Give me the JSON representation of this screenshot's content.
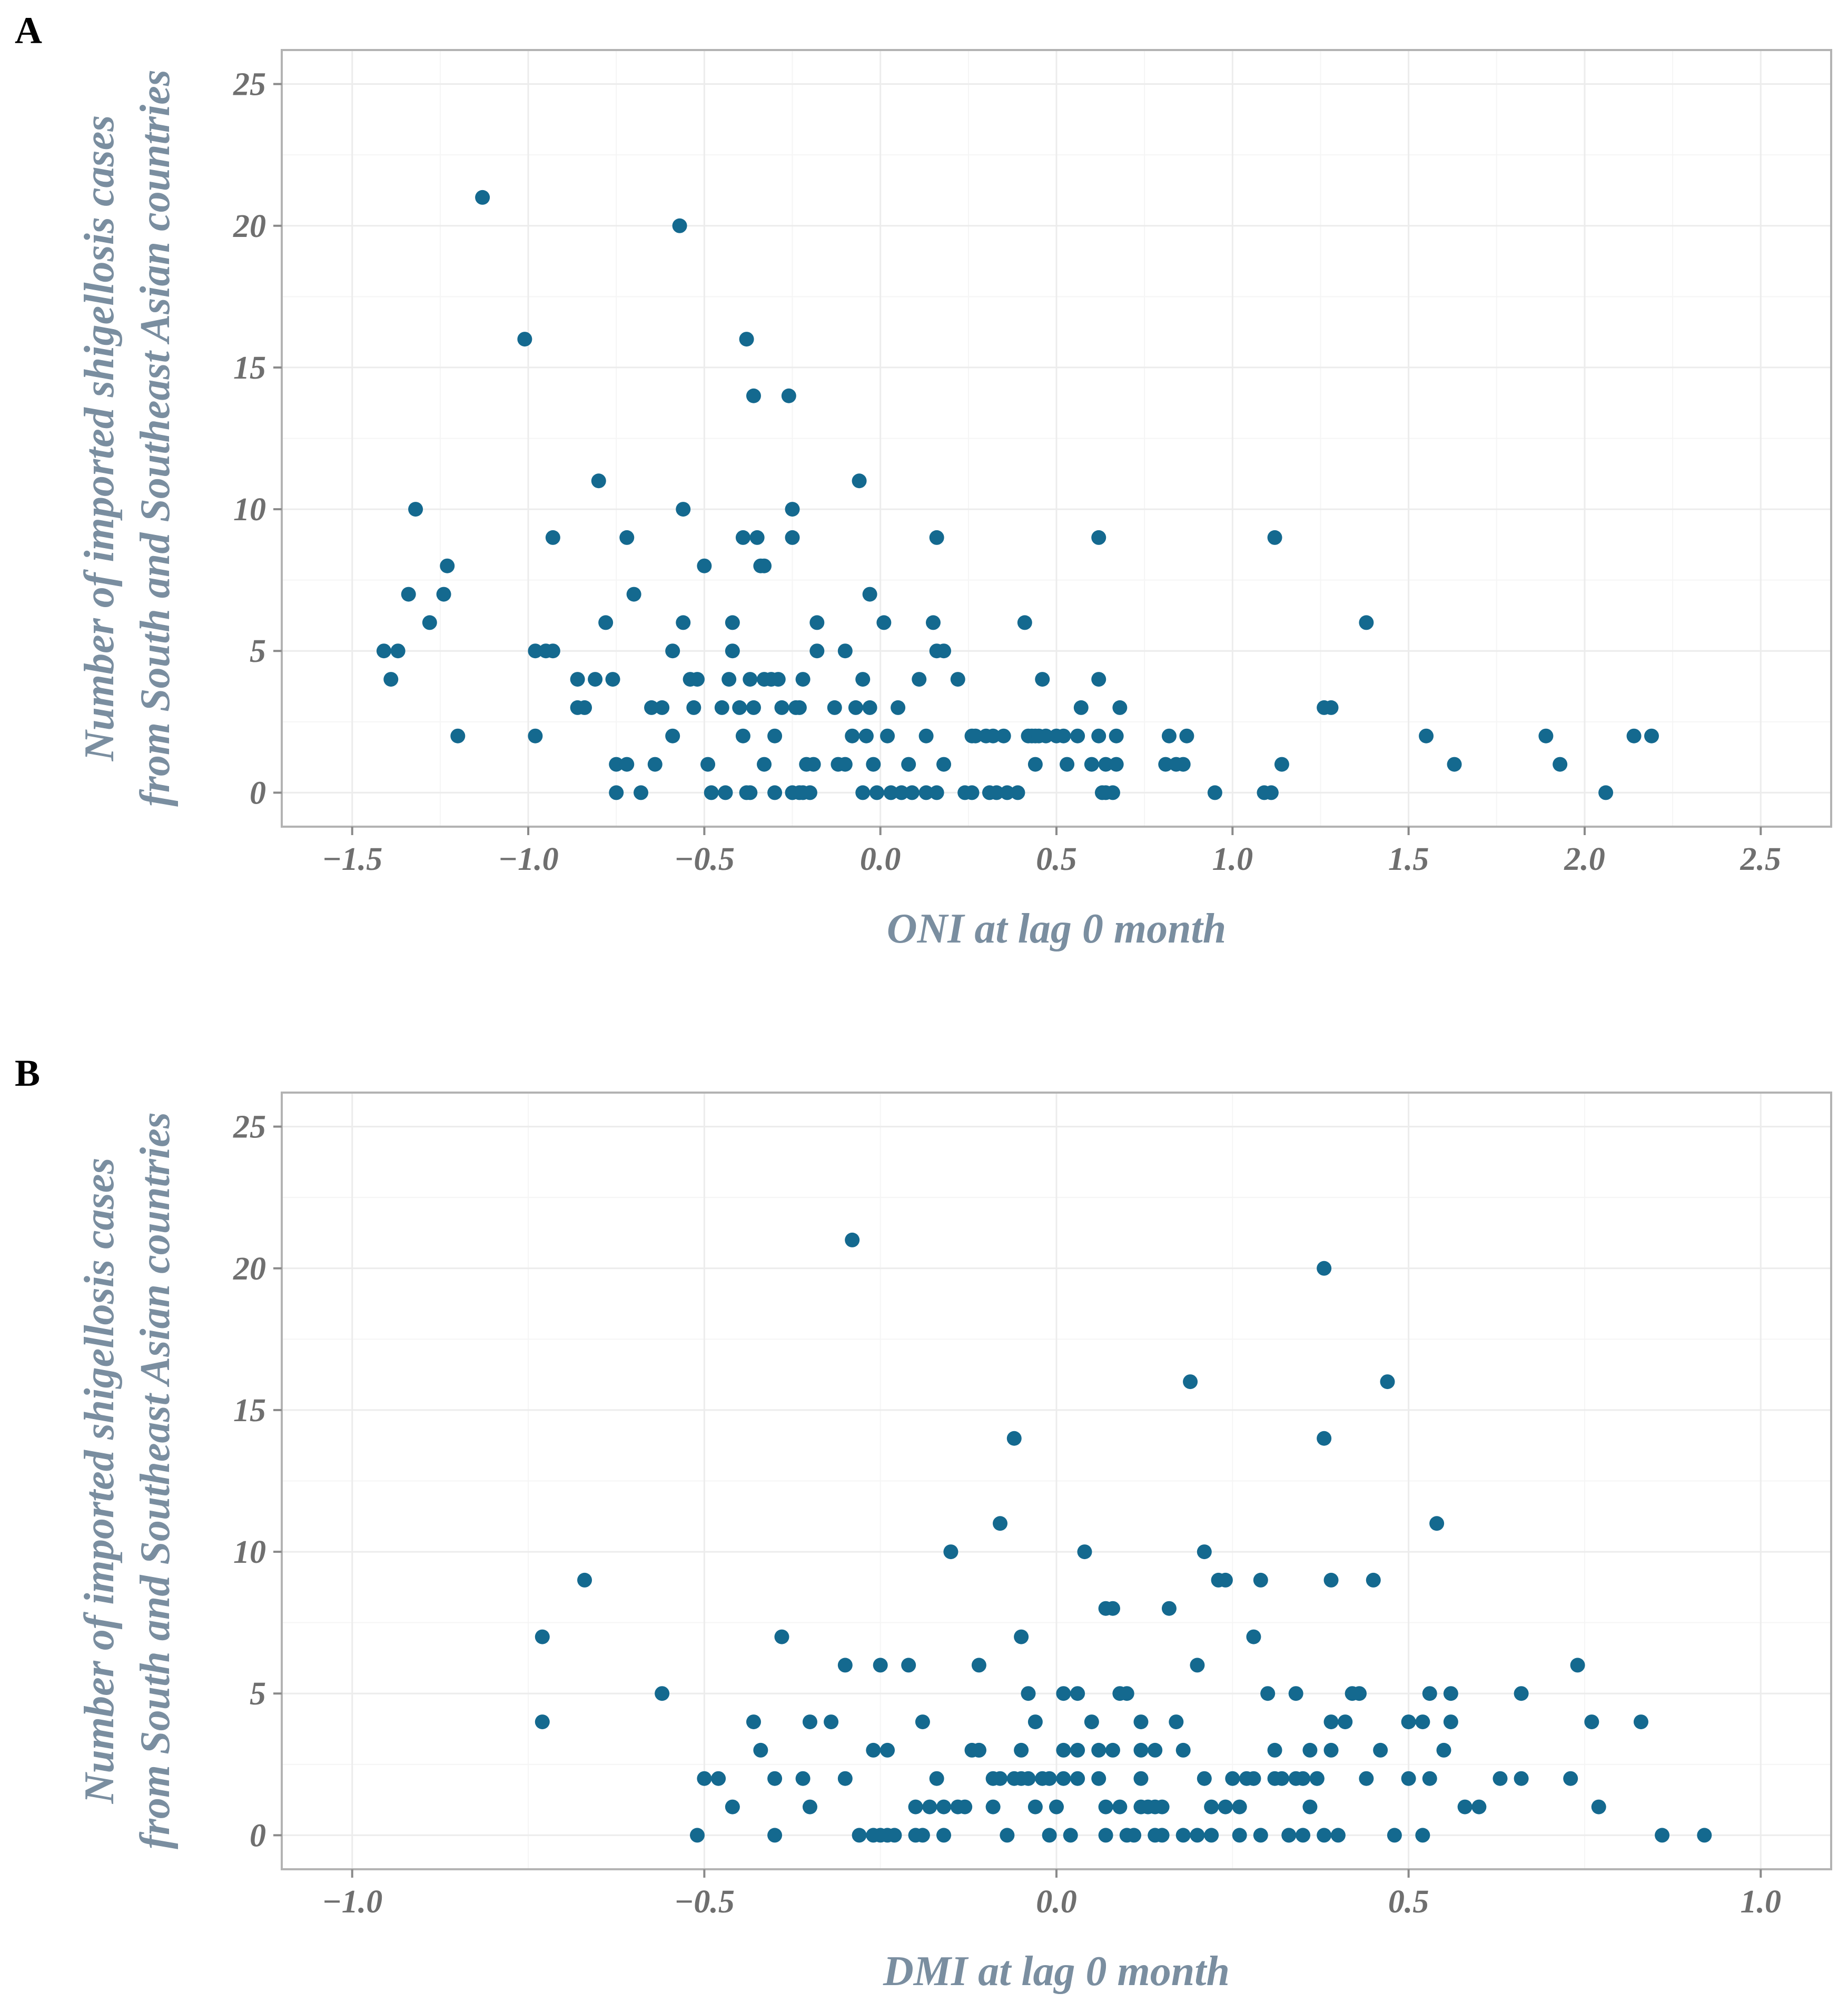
{
  "chart_data": [
    {
      "panel": "A",
      "type": "scatter",
      "title": "",
      "xlabel": "ONI at lag 0 month",
      "ylabel_lines": [
        "Number of imported shigellosis cases",
        "from South and Southeast Asian countries"
      ],
      "xlim": [
        -1.7,
        2.7
      ],
      "ylim": [
        -1.2,
        26.2
      ],
      "xticks": [
        -1.5,
        -1.0,
        -0.5,
        0.0,
        0.5,
        1.0,
        1.5,
        2.0,
        2.5
      ],
      "xtick_labels": [
        "−1.5",
        "−1.0",
        "−0.5",
        "0.0",
        "0.5",
        "1.0",
        "1.5",
        "2.0",
        "2.5"
      ],
      "yticks": [
        0,
        5,
        10,
        15,
        20,
        25
      ],
      "ytick_labels": [
        "0",
        "5",
        "10",
        "15",
        "20",
        "25"
      ],
      "grid": true,
      "color": "#14698f",
      "points": [
        [
          -1.41,
          5
        ],
        [
          -1.39,
          4
        ],
        [
          -1.37,
          5
        ],
        [
          -1.34,
          7
        ],
        [
          -1.32,
          10
        ],
        [
          -1.28,
          6
        ],
        [
          -1.24,
          7
        ],
        [
          -1.23,
          8
        ],
        [
          -1.2,
          2
        ],
        [
          -1.13,
          21
        ],
        [
          -1.01,
          16
        ],
        [
          -0.98,
          5
        ],
        [
          -0.98,
          2
        ],
        [
          -0.95,
          5
        ],
        [
          -0.93,
          5
        ],
        [
          -0.93,
          9
        ],
        [
          -0.86,
          4
        ],
        [
          -0.86,
          3
        ],
        [
          -0.84,
          3
        ],
        [
          -0.81,
          4
        ],
        [
          -0.8,
          11
        ],
        [
          -0.78,
          6
        ],
        [
          -0.76,
          4
        ],
        [
          -0.75,
          1
        ],
        [
          -0.75,
          0
        ],
        [
          -0.72,
          1
        ],
        [
          -0.72,
          9
        ],
        [
          -0.7,
          7
        ],
        [
          -0.68,
          0
        ],
        [
          -0.65,
          3
        ],
        [
          -0.64,
          1
        ],
        [
          -0.62,
          3
        ],
        [
          -0.59,
          5
        ],
        [
          -0.59,
          2
        ],
        [
          -0.57,
          20
        ],
        [
          -0.56,
          10
        ],
        [
          -0.56,
          6
        ],
        [
          -0.54,
          4
        ],
        [
          -0.53,
          3
        ],
        [
          -0.52,
          4
        ],
        [
          -0.5,
          8
        ],
        [
          -0.49,
          1
        ],
        [
          -0.48,
          0
        ],
        [
          -0.45,
          3
        ],
        [
          -0.44,
          0
        ],
        [
          -0.43,
          4
        ],
        [
          -0.42,
          6
        ],
        [
          -0.42,
          5
        ],
        [
          -0.4,
          3
        ],
        [
          -0.39,
          2
        ],
        [
          -0.39,
          9
        ],
        [
          -0.38,
          16
        ],
        [
          -0.38,
          0
        ],
        [
          -0.37,
          0
        ],
        [
          -0.37,
          4
        ],
        [
          -0.36,
          3
        ],
        [
          -0.36,
          14
        ],
        [
          -0.35,
          9
        ],
        [
          -0.34,
          8
        ],
        [
          -0.33,
          1
        ],
        [
          -0.33,
          8
        ],
        [
          -0.33,
          4
        ],
        [
          -0.31,
          4
        ],
        [
          -0.3,
          0
        ],
        [
          -0.3,
          2
        ],
        [
          -0.29,
          4
        ],
        [
          -0.28,
          3
        ],
        [
          -0.26,
          14
        ],
        [
          -0.25,
          9
        ],
        [
          -0.25,
          10
        ],
        [
          -0.25,
          0
        ],
        [
          -0.24,
          3
        ],
        [
          -0.23,
          3
        ],
        [
          -0.23,
          0
        ],
        [
          -0.22,
          4
        ],
        [
          -0.22,
          0
        ],
        [
          -0.21,
          1
        ],
        [
          -0.2,
          0
        ],
        [
          -0.19,
          1
        ],
        [
          -0.18,
          6
        ],
        [
          -0.18,
          5
        ],
        [
          -0.13,
          3
        ],
        [
          -0.12,
          1
        ],
        [
          -0.1,
          5
        ],
        [
          -0.1,
          1
        ],
        [
          -0.08,
          2
        ],
        [
          -0.07,
          3
        ],
        [
          -0.06,
          11
        ],
        [
          -0.05,
          0
        ],
        [
          -0.05,
          4
        ],
        [
          -0.04,
          2
        ],
        [
          -0.03,
          3
        ],
        [
          -0.03,
          7
        ],
        [
          -0.02,
          1
        ],
        [
          -0.01,
          0
        ],
        [
          0.01,
          6
        ],
        [
          0.02,
          2
        ],
        [
          0.03,
          0
        ],
        [
          0.05,
          3
        ],
        [
          0.06,
          0
        ],
        [
          0.08,
          1
        ],
        [
          0.09,
          0
        ],
        [
          0.11,
          4
        ],
        [
          0.13,
          2
        ],
        [
          0.13,
          0
        ],
        [
          0.15,
          6
        ],
        [
          0.16,
          5
        ],
        [
          0.16,
          0
        ],
        [
          0.16,
          9
        ],
        [
          0.18,
          5
        ],
        [
          0.18,
          1
        ],
        [
          0.22,
          4
        ],
        [
          0.24,
          0
        ],
        [
          0.26,
          2
        ],
        [
          0.26,
          0
        ],
        [
          0.27,
          2
        ],
        [
          0.3,
          2
        ],
        [
          0.31,
          0
        ],
        [
          0.32,
          2
        ],
        [
          0.33,
          0
        ],
        [
          0.35,
          2
        ],
        [
          0.36,
          0
        ],
        [
          0.39,
          0
        ],
        [
          0.41,
          6
        ],
        [
          0.42,
          2
        ],
        [
          0.43,
          2
        ],
        [
          0.44,
          1
        ],
        [
          0.44,
          2
        ],
        [
          0.45,
          2
        ],
        [
          0.46,
          4
        ],
        [
          0.47,
          2
        ],
        [
          0.5,
          2
        ],
        [
          0.52,
          2
        ],
        [
          0.53,
          1
        ],
        [
          0.56,
          2
        ],
        [
          0.57,
          3
        ],
        [
          0.6,
          1
        ],
        [
          0.62,
          9
        ],
        [
          0.62,
          4
        ],
        [
          0.62,
          2
        ],
        [
          0.63,
          0
        ],
        [
          0.64,
          1
        ],
        [
          0.64,
          0
        ],
        [
          0.66,
          0
        ],
        [
          0.67,
          1
        ],
        [
          0.67,
          2
        ],
        [
          0.68,
          3
        ],
        [
          0.81,
          1
        ],
        [
          0.82,
          2
        ],
        [
          0.84,
          1
        ],
        [
          0.86,
          1
        ],
        [
          0.87,
          2
        ],
        [
          0.95,
          0
        ],
        [
          1.09,
          0
        ],
        [
          1.11,
          0
        ],
        [
          1.12,
          9
        ],
        [
          1.14,
          1
        ],
        [
          1.26,
          3
        ],
        [
          1.28,
          3
        ],
        [
          1.38,
          6
        ],
        [
          1.55,
          2
        ],
        [
          1.63,
          1
        ],
        [
          1.89,
          2
        ],
        [
          1.93,
          1
        ],
        [
          2.06,
          0
        ],
        [
          2.14,
          2
        ],
        [
          2.19,
          2
        ]
      ]
    },
    {
      "panel": "B",
      "type": "scatter",
      "title": "",
      "xlabel": "DMI at lag 0 month",
      "ylabel_lines": [
        "Number of imported shigellosis cases",
        "from South and Southeast Asian countries"
      ],
      "xlim": [
        -1.1,
        1.1
      ],
      "ylim": [
        -1.2,
        26.2
      ],
      "xticks": [
        -1.0,
        -0.5,
        0.0,
        0.5,
        1.0
      ],
      "xtick_labels": [
        "−1.0",
        "−0.5",
        "0.0",
        "0.5",
        "1.0"
      ],
      "yticks": [
        0,
        5,
        10,
        15,
        20,
        25
      ],
      "ytick_labels": [
        "0",
        "5",
        "10",
        "15",
        "20",
        "25"
      ],
      "grid": true,
      "color": "#14698f",
      "points": [
        [
          -0.73,
          7
        ],
        [
          -0.73,
          4
        ],
        [
          -0.67,
          9
        ],
        [
          -0.56,
          5
        ],
        [
          -0.51,
          0
        ],
        [
          -0.5,
          2
        ],
        [
          -0.48,
          2
        ],
        [
          -0.46,
          1
        ],
        [
          -0.43,
          4
        ],
        [
          -0.42,
          3
        ],
        [
          -0.4,
          2
        ],
        [
          -0.4,
          0
        ],
        [
          -0.39,
          7
        ],
        [
          -0.36,
          2
        ],
        [
          -0.35,
          4
        ],
        [
          -0.35,
          1
        ],
        [
          -0.32,
          4
        ],
        [
          -0.3,
          6
        ],
        [
          -0.3,
          2
        ],
        [
          -0.29,
          21
        ],
        [
          -0.28,
          0
        ],
        [
          -0.26,
          3
        ],
        [
          -0.26,
          0
        ],
        [
          -0.25,
          6
        ],
        [
          -0.25,
          0
        ],
        [
          -0.24,
          3
        ],
        [
          -0.24,
          0
        ],
        [
          -0.23,
          0
        ],
        [
          -0.21,
          6
        ],
        [
          -0.2,
          1
        ],
        [
          -0.2,
          0
        ],
        [
          -0.19,
          4
        ],
        [
          -0.19,
          0
        ],
        [
          -0.18,
          1
        ],
        [
          -0.17,
          2
        ],
        [
          -0.16,
          0
        ],
        [
          -0.16,
          1
        ],
        [
          -0.15,
          10
        ],
        [
          -0.14,
          1
        ],
        [
          -0.13,
          1
        ],
        [
          -0.12,
          3
        ],
        [
          -0.11,
          3
        ],
        [
          -0.11,
          6
        ],
        [
          -0.11,
          3
        ],
        [
          -0.09,
          1
        ],
        [
          -0.09,
          2
        ],
        [
          -0.08,
          11
        ],
        [
          -0.08,
          2
        ],
        [
          -0.07,
          0
        ],
        [
          -0.06,
          14
        ],
        [
          -0.06,
          2
        ],
        [
          -0.05,
          2
        ],
        [
          -0.05,
          7
        ],
        [
          -0.05,
          3
        ],
        [
          -0.04,
          5
        ],
        [
          -0.04,
          2
        ],
        [
          -0.03,
          4
        ],
        [
          -0.03,
          1
        ],
        [
          -0.02,
          2
        ],
        [
          -0.01,
          2
        ],
        [
          -0.01,
          0
        ],
        [
          0.0,
          1
        ],
        [
          0.01,
          2
        ],
        [
          0.01,
          5
        ],
        [
          0.01,
          3
        ],
        [
          0.02,
          0
        ],
        [
          0.03,
          3
        ],
        [
          0.03,
          5
        ],
        [
          0.03,
          2
        ],
        [
          0.04,
          10
        ],
        [
          0.05,
          4
        ],
        [
          0.06,
          2
        ],
        [
          0.06,
          3
        ],
        [
          0.07,
          1
        ],
        [
          0.07,
          8
        ],
        [
          0.07,
          0
        ],
        [
          0.08,
          8
        ],
        [
          0.08,
          3
        ],
        [
          0.09,
          1
        ],
        [
          0.09,
          5
        ],
        [
          0.1,
          0
        ],
        [
          0.1,
          5
        ],
        [
          0.11,
          0
        ],
        [
          0.12,
          4
        ],
        [
          0.12,
          2
        ],
        [
          0.12,
          3
        ],
        [
          0.12,
          1
        ],
        [
          0.13,
          1
        ],
        [
          0.14,
          0
        ],
        [
          0.14,
          1
        ],
        [
          0.14,
          3
        ],
        [
          0.15,
          1
        ],
        [
          0.15,
          0
        ],
        [
          0.16,
          8
        ],
        [
          0.17,
          4
        ],
        [
          0.18,
          0
        ],
        [
          0.18,
          3
        ],
        [
          0.19,
          16
        ],
        [
          0.2,
          6
        ],
        [
          0.2,
          0
        ],
        [
          0.21,
          2
        ],
        [
          0.21,
          10
        ],
        [
          0.22,
          0
        ],
        [
          0.22,
          1
        ],
        [
          0.23,
          9
        ],
        [
          0.24,
          9
        ],
        [
          0.24,
          1
        ],
        [
          0.25,
          2
        ],
        [
          0.26,
          1
        ],
        [
          0.26,
          0
        ],
        [
          0.27,
          2
        ],
        [
          0.28,
          2
        ],
        [
          0.28,
          7
        ],
        [
          0.29,
          0
        ],
        [
          0.29,
          9
        ],
        [
          0.3,
          5
        ],
        [
          0.31,
          2
        ],
        [
          0.31,
          3
        ],
        [
          0.32,
          2
        ],
        [
          0.33,
          0
        ],
        [
          0.33,
          0
        ],
        [
          0.34,
          5
        ],
        [
          0.34,
          2
        ],
        [
          0.35,
          0
        ],
        [
          0.35,
          2
        ],
        [
          0.36,
          1
        ],
        [
          0.36,
          3
        ],
        [
          0.37,
          2
        ],
        [
          0.37,
          2
        ],
        [
          0.38,
          14
        ],
        [
          0.38,
          20
        ],
        [
          0.38,
          0
        ],
        [
          0.39,
          9
        ],
        [
          0.39,
          3
        ],
        [
          0.39,
          4
        ],
        [
          0.4,
          0
        ],
        [
          0.41,
          4
        ],
        [
          0.42,
          5
        ],
        [
          0.43,
          5
        ],
        [
          0.44,
          2
        ],
        [
          0.45,
          9
        ],
        [
          0.46,
          3
        ],
        [
          0.47,
          16
        ],
        [
          0.48,
          0
        ],
        [
          0.5,
          4
        ],
        [
          0.5,
          2
        ],
        [
          0.52,
          0
        ],
        [
          0.52,
          4
        ],
        [
          0.53,
          2
        ],
        [
          0.53,
          5
        ],
        [
          0.54,
          11
        ],
        [
          0.55,
          3
        ],
        [
          0.56,
          5
        ],
        [
          0.56,
          4
        ],
        [
          0.58,
          1
        ],
        [
          0.6,
          1
        ],
        [
          0.63,
          2
        ],
        [
          0.66,
          2
        ],
        [
          0.66,
          5
        ],
        [
          0.73,
          2
        ],
        [
          0.74,
          6
        ],
        [
          0.76,
          4
        ],
        [
          0.77,
          1
        ],
        [
          0.83,
          4
        ],
        [
          0.86,
          0
        ],
        [
          0.92,
          0
        ]
      ]
    }
  ]
}
